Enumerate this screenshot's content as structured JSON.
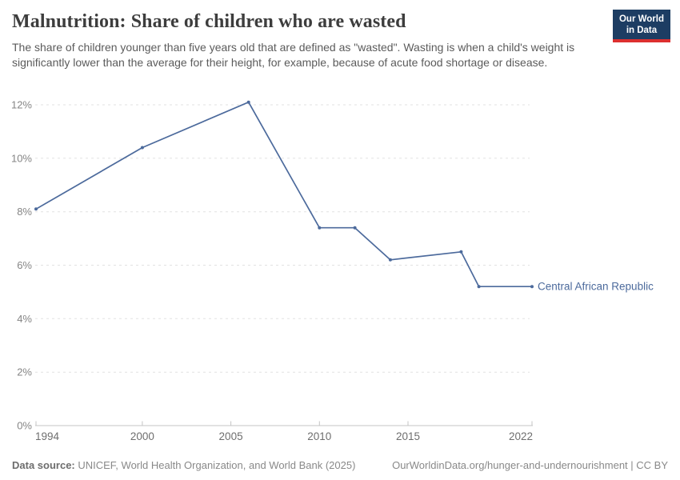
{
  "header": {
    "title": "Malnutrition: Share of children who are wasted",
    "subtitle": "The share of children younger than five years old that are defined as \"wasted\". Wasting is when a child's weight is significantly lower than the average for their height, for example, because of acute food shortage or disease.",
    "logo": {
      "line1": "Our World",
      "line2": "in Data"
    }
  },
  "theme": {
    "line_color": "#4c6a9c",
    "logo_bg": "#1d3d63",
    "logo_accent": "#dc2f2f",
    "grid_color": "#e2e2e2",
    "axis_color": "#c4c4c4",
    "tick_label_color": "#858585"
  },
  "chart_data": {
    "type": "line",
    "title": "Malnutrition: Share of children who are wasted",
    "xlabel": "",
    "ylabel": "",
    "xlim": [
      1994,
      2022
    ],
    "ylim": [
      0,
      12
    ],
    "x_ticks": [
      1994,
      2000,
      2005,
      2010,
      2015,
      2022
    ],
    "y_ticks": [
      0,
      2,
      4,
      6,
      8,
      10,
      12
    ],
    "y_tick_suffix": "%",
    "grid": "horizontal-dashed",
    "legend_position": "end-of-line-label",
    "series": [
      {
        "name": "Central African Republic",
        "points": [
          {
            "x": 1994,
            "y": 8.1
          },
          {
            "x": 2000,
            "y": 10.4
          },
          {
            "x": 2006,
            "y": 12.1
          },
          {
            "x": 2010,
            "y": 7.4
          },
          {
            "x": 2012,
            "y": 7.4
          },
          {
            "x": 2014,
            "y": 6.2
          },
          {
            "x": 2018,
            "y": 6.5
          },
          {
            "x": 2019,
            "y": 5.2
          },
          {
            "x": 2022,
            "y": 5.2
          }
        ]
      }
    ]
  },
  "footer": {
    "datasource_label": "Data source:",
    "datasource_text": " UNICEF, World Health Organization, and World Bank (2025)",
    "link": "OurWorldinData.org/hunger-and-undernourishment | CC BY"
  }
}
